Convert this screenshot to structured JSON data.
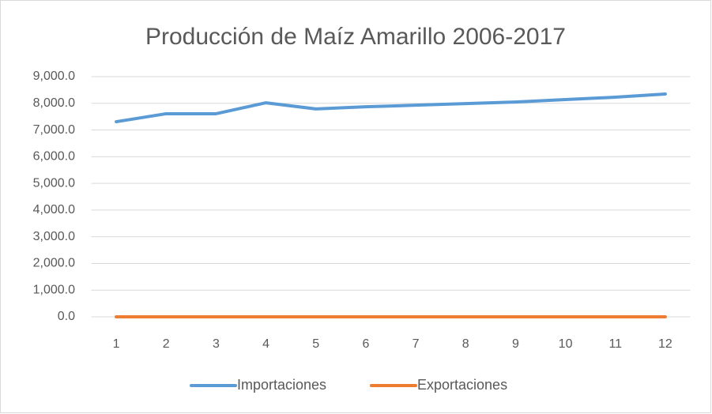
{
  "chart_data": {
    "type": "line",
    "title": "Producción de Maíz Amarillo 2006-2017",
    "categories": [
      "1",
      "2",
      "3",
      "4",
      "5",
      "6",
      "7",
      "8",
      "9",
      "10",
      "11",
      "12"
    ],
    "series": [
      {
        "name": "Importaciones",
        "color": "#5b9bd5",
        "values": [
          7310,
          7610,
          7610,
          8020,
          7790,
          7870,
          7930,
          7990,
          8050,
          8140,
          8230,
          8350
        ]
      },
      {
        "name": "Exportaciones",
        "color": "#ed7d31",
        "values": [
          0,
          0,
          0,
          0,
          0,
          0,
          0,
          0,
          0,
          0,
          0,
          0
        ]
      }
    ],
    "ylim": [
      0,
      9000
    ],
    "yticks": [
      {
        "value": 0,
        "label": "0.0"
      },
      {
        "value": 1000,
        "label": "1,000.0"
      },
      {
        "value": 2000,
        "label": "2,000.0"
      },
      {
        "value": 3000,
        "label": "3,000.0"
      },
      {
        "value": 4000,
        "label": "4,000.0"
      },
      {
        "value": 5000,
        "label": "5,000.0"
      },
      {
        "value": 6000,
        "label": "6,000.0"
      },
      {
        "value": 7000,
        "label": "7,000.0"
      },
      {
        "value": 8000,
        "label": "8,000.0"
      },
      {
        "value": 9000,
        "label": "9,000.0"
      }
    ],
    "grid": true,
    "legend": "bottom"
  }
}
